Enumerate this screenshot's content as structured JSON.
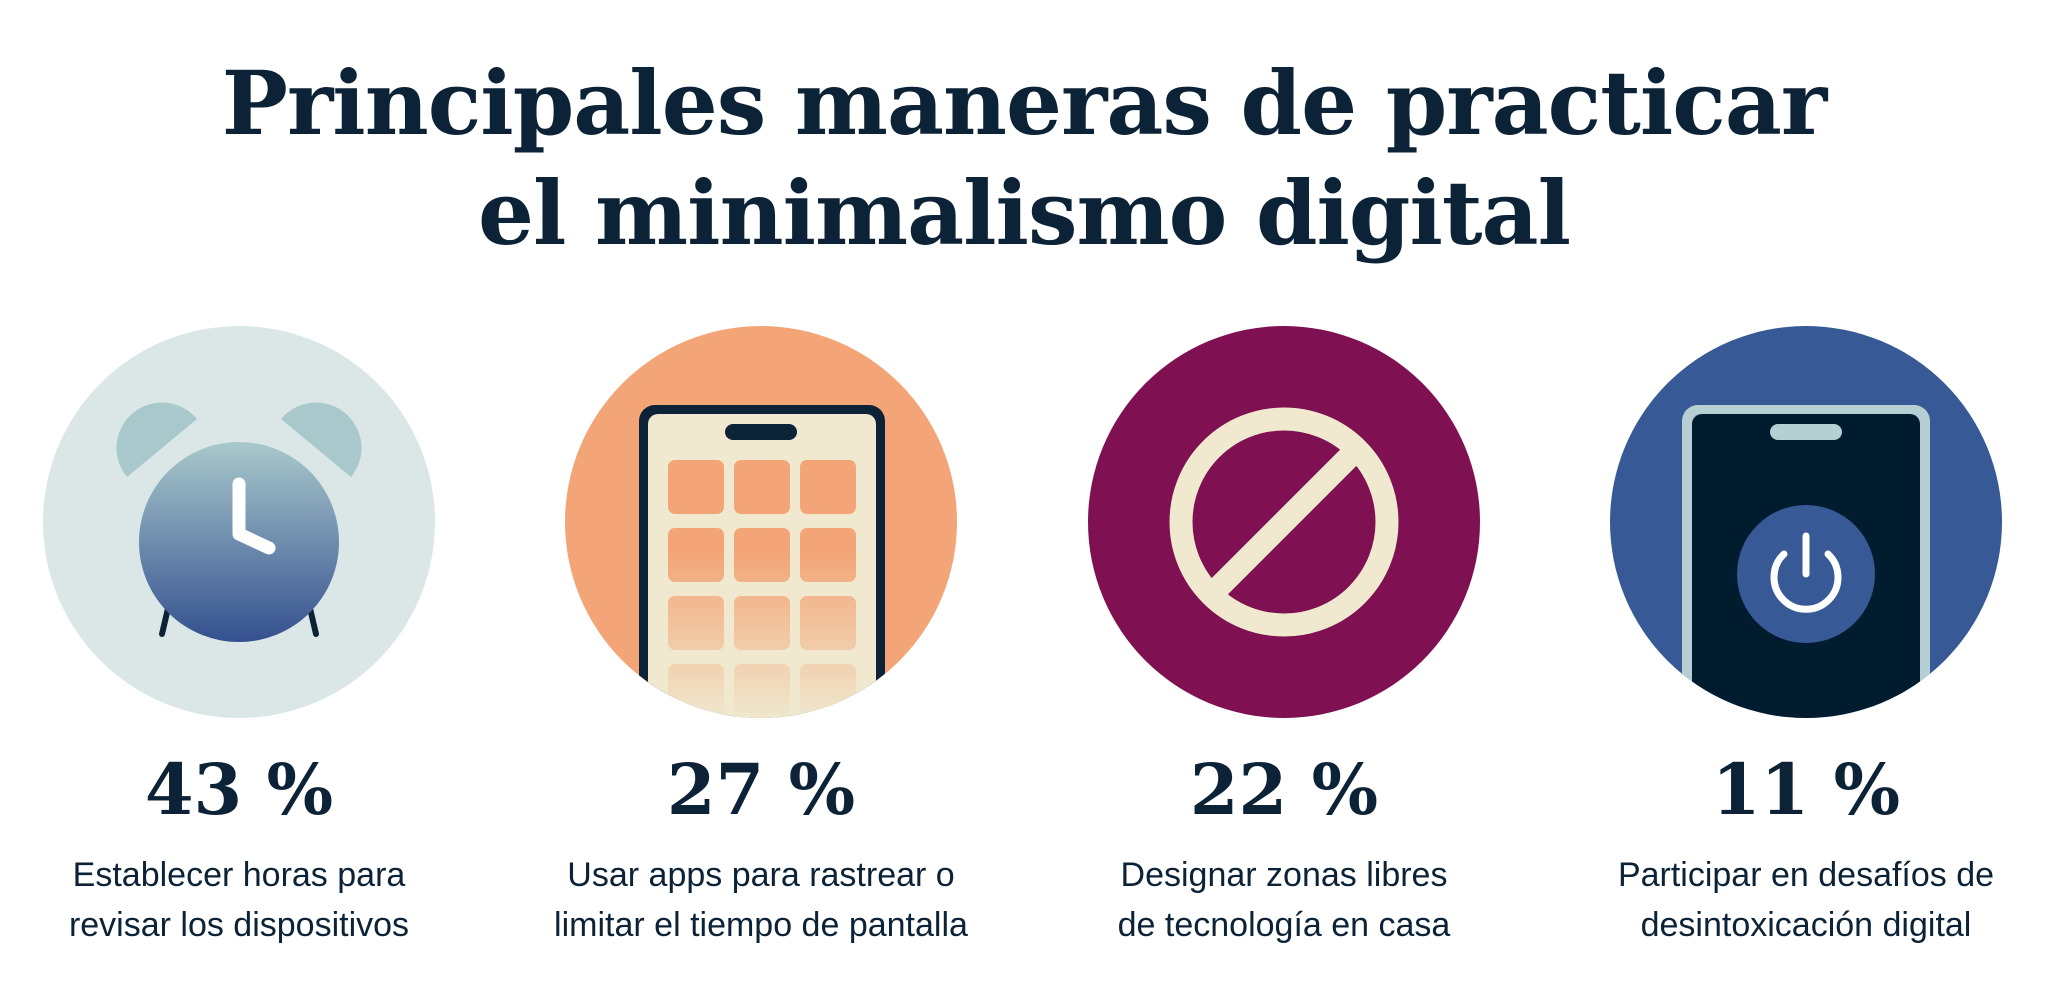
{
  "title": {
    "line1": "Principales maneras de practicar",
    "line2": "el minimalismo digital"
  },
  "colors": {
    "text": "#0c2236",
    "clock_bg": "#dae7e6",
    "apps_bg": "#f3a577",
    "zones_bg": "#7f1051",
    "detox_bg": "#375996",
    "cream": "#f0e9cf"
  },
  "items": [
    {
      "icon": "alarm-clock-icon",
      "percent": "43 %",
      "value": 43,
      "label_line1": "Establecer horas para",
      "label_line2": "revisar los dispositivos"
    },
    {
      "icon": "phone-apps-icon",
      "percent": "27 %",
      "value": 27,
      "label_line1": "Usar apps para rastrear o",
      "label_line2": "limitar el tiempo de pantalla"
    },
    {
      "icon": "prohibited-icon",
      "percent": "22 %",
      "value": 22,
      "label_line1": "Designar zonas libres",
      "label_line2": "de tecnología en casa"
    },
    {
      "icon": "phone-power-icon",
      "percent": "11 %",
      "value": 11,
      "label_line1": "Participar en desafíos de",
      "label_line2": "desintoxicación digital"
    }
  ]
}
